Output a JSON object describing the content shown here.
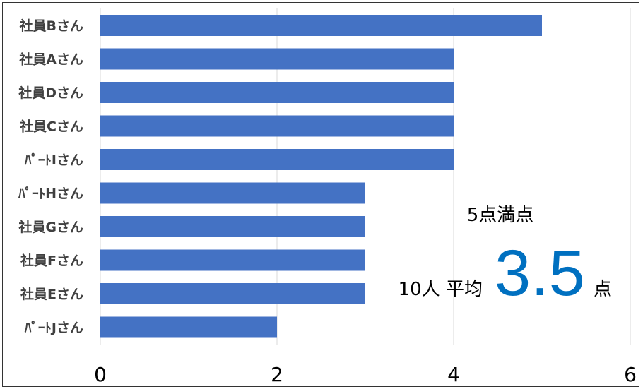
{
  "chart_data": {
    "type": "bar",
    "orientation": "horizontal",
    "categories": [
      "社員Bさん",
      "社員Aさん",
      "社員Dさん",
      "社員Cさん",
      "ﾊﾟｰﾄIさん",
      "ﾊﾟｰﾄHさん",
      "社員Gさん",
      "社員Fさん",
      "社員Eさん",
      "ﾊﾟｰﾄJさん"
    ],
    "values": [
      5,
      4,
      4,
      4,
      4,
      3,
      3,
      3,
      3,
      2
    ],
    "xlim": [
      0,
      6
    ],
    "xticks": [
      "0",
      "2",
      "4",
      "6"
    ],
    "grid": true,
    "bar_color": "#4472C4",
    "title": "",
    "xlabel": "",
    "ylabel": ""
  },
  "annotation": {
    "max_score": "5点満点",
    "count_avg": "10人 平均",
    "average": "3.5",
    "unit": "点",
    "average_color": "#0070C0"
  }
}
